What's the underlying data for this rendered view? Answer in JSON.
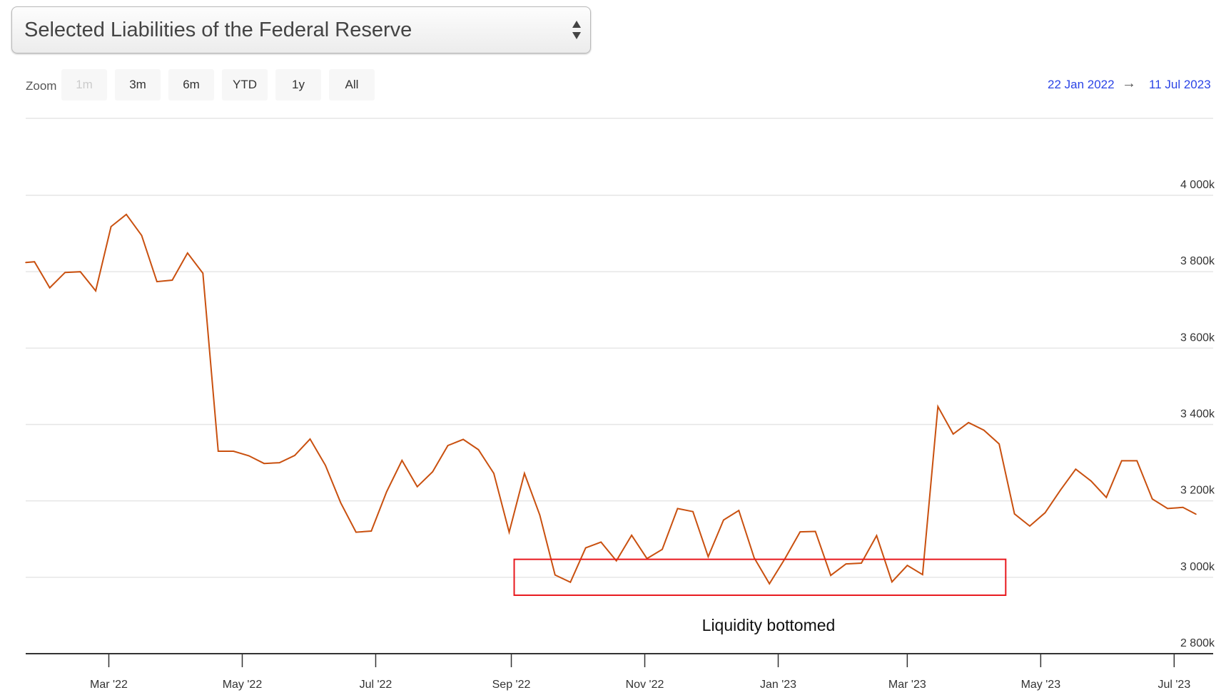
{
  "selector": {
    "label": "Selected Liabilities of the Federal Reserve"
  },
  "zoom": {
    "label": "Zoom",
    "buttons": [
      {
        "label": "1m",
        "enabled": false
      },
      {
        "label": "3m",
        "enabled": true
      },
      {
        "label": "6m",
        "enabled": true
      },
      {
        "label": "YTD",
        "enabled": true
      },
      {
        "label": "1y",
        "enabled": true
      },
      {
        "label": "All",
        "enabled": true
      }
    ]
  },
  "range": {
    "from": "22 Jan 2022",
    "arrow": "→",
    "to": "11 Jul 2023"
  },
  "colors": {
    "line": "#c9500f",
    "annotation_box": "#e8191e",
    "grid": "#e6e6e6",
    "axis": "#333333"
  },
  "chart_data": {
    "type": "line",
    "title": "Selected Liabilities of the Federal Reserve",
    "xlabel": "",
    "ylabel": "",
    "ylim": [
      2800,
      4000
    ],
    "y_ticks": [
      2800,
      3000,
      3200,
      3400,
      3600,
      3800,
      4000
    ],
    "y_tick_labels": [
      "2 800k",
      "3 000k",
      "3 200k",
      "3 400k",
      "3 600k",
      "3 800k",
      "4 000k"
    ],
    "x_ticks": [
      "2022-03-01",
      "2022-05-01",
      "2022-07-01",
      "2022-09-01",
      "2022-11-01",
      "2023-01-01",
      "2023-03-01",
      "2023-05-01",
      "2023-07-01"
    ],
    "x_tick_labels": [
      "Mar '22",
      "May '22",
      "Jul '22",
      "Sep '22",
      "Nov '22",
      "Jan '23",
      "Mar '23",
      "May '23",
      "Jul '23"
    ],
    "x_range": [
      "2022-01-22",
      "2023-07-11"
    ],
    "grid": true,
    "series": [
      {
        "x": [
          "2022-01-22",
          "2022-01-26",
          "2022-02-02",
          "2022-02-09",
          "2022-02-16",
          "2022-02-23",
          "2022-03-02",
          "2022-03-09",
          "2022-03-16",
          "2022-03-23",
          "2022-03-30",
          "2022-04-06",
          "2022-04-13",
          "2022-04-20",
          "2022-04-27",
          "2022-05-04",
          "2022-05-11",
          "2022-05-18",
          "2022-05-25",
          "2022-06-01",
          "2022-06-08",
          "2022-06-15",
          "2022-06-22",
          "2022-06-29",
          "2022-07-06",
          "2022-07-13",
          "2022-07-20",
          "2022-07-27",
          "2022-08-03",
          "2022-08-10",
          "2022-08-17",
          "2022-08-24",
          "2022-08-31",
          "2022-09-07",
          "2022-09-14",
          "2022-09-21",
          "2022-09-28",
          "2022-10-05",
          "2022-10-12",
          "2022-10-19",
          "2022-10-26",
          "2022-11-02",
          "2022-11-09",
          "2022-11-16",
          "2022-11-23",
          "2022-11-30",
          "2022-12-07",
          "2022-12-14",
          "2022-12-21",
          "2022-12-28",
          "2023-01-04",
          "2023-01-11",
          "2023-01-18",
          "2023-01-25",
          "2023-02-01",
          "2023-02-08",
          "2023-02-15",
          "2023-02-22",
          "2023-03-01",
          "2023-03-08",
          "2023-03-15",
          "2023-03-22",
          "2023-03-29",
          "2023-04-05",
          "2023-04-12",
          "2023-04-19",
          "2023-04-26",
          "2023-05-03",
          "2023-05-10",
          "2023-05-17",
          "2023-05-24",
          "2023-05-31",
          "2023-06-07",
          "2023-06-14",
          "2023-06-21",
          "2023-06-28",
          "2023-07-05",
          "2023-07-11"
        ],
        "values": [
          3824,
          3826,
          3758,
          3798,
          3800,
          3750,
          3918,
          3950,
          3895,
          3774,
          3778,
          3849,
          3796,
          3330,
          3330,
          3318,
          3298,
          3300,
          3319,
          3362,
          3293,
          3195,
          3118,
          3121,
          3224,
          3306,
          3237,
          3276,
          3345,
          3361,
          3334,
          3272,
          3118,
          3272,
          3163,
          3006,
          2987,
          3077,
          3092,
          3043,
          3110,
          3049,
          3073,
          3180,
          3172,
          3054,
          3150,
          3175,
          3051,
          2983,
          3048,
          3119,
          3120,
          3005,
          3035,
          3037,
          3109,
          2988,
          3031,
          3007,
          3447,
          3375,
          3405,
          3385,
          3349,
          3166,
          3134,
          3169,
          3228,
          3283,
          3252,
          3209,
          3305,
          3305,
          3205,
          3180,
          3183,
          3165
        ]
      }
    ],
    "annotations": [
      {
        "text": "Liquidity bottomed",
        "box_x": [
          "2022-09-01",
          "2023-04-15"
        ],
        "box_y": [
          2953,
          3047
        ]
      }
    ]
  }
}
